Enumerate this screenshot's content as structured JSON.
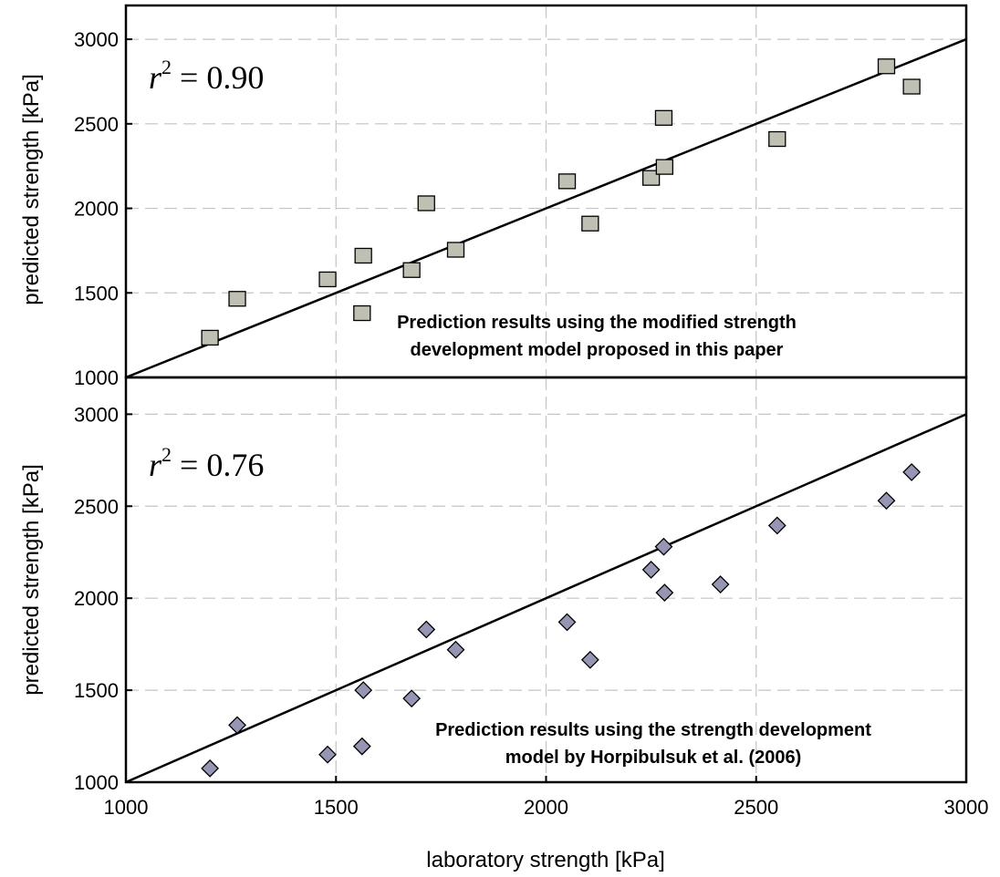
{
  "figure": {
    "xlabel": "laboratory strength [kPa]",
    "xticks": [
      "1000",
      "1500",
      "2000",
      "2500",
      "3000"
    ]
  },
  "chart_data": [
    {
      "type": "scatter",
      "ylabel": "predicted strength [kPa]",
      "yticks": [
        "1000",
        "1500",
        "2000",
        "2500",
        "3000"
      ],
      "xlim": [
        1000,
        3000
      ],
      "ylim": [
        1000,
        3200
      ],
      "grid": true,
      "r2_label": "= 0.90",
      "annotation_line1": "Prediction results using the modified strength",
      "annotation_line2": "development model proposed in this paper",
      "fit_line": [
        [
          1000,
          1000
        ],
        [
          3000,
          3000
        ]
      ],
      "marker": "square",
      "marker_color": "#bfbfb4",
      "x": [
        1200,
        1265,
        1480,
        1562,
        1565,
        1680,
        1715,
        1785,
        2050,
        2105,
        2250,
        2280,
        2282,
        2550,
        2810,
        2870
      ],
      "y": [
        1235,
        1465,
        1580,
        1380,
        1720,
        1635,
        2030,
        1755,
        2160,
        1910,
        2180,
        2535,
        2245,
        2410,
        2840,
        2720
      ]
    },
    {
      "type": "scatter",
      "ylabel": "predicted strength [kPa]",
      "yticks": [
        "1000",
        "1500",
        "2000",
        "2500",
        "3000"
      ],
      "xlim": [
        1000,
        3000
      ],
      "ylim": [
        1000,
        3200
      ],
      "grid": true,
      "r2_label": "= 0.76",
      "annotation_line1": "Prediction results using the strength development",
      "annotation_line2": "model by Horpibulsuk et al. (2006)",
      "fit_line": [
        [
          1000,
          1000
        ],
        [
          3000,
          3000
        ]
      ],
      "marker": "diamond",
      "marker_color": "#9696b4",
      "x": [
        1200,
        1265,
        1480,
        1562,
        1565,
        1680,
        1715,
        1785,
        2050,
        2105,
        2250,
        2280,
        2282,
        2415,
        2550,
        2810,
        2870
      ],
      "y": [
        1075,
        1310,
        1150,
        1195,
        1500,
        1455,
        1830,
        1720,
        1870,
        1665,
        2155,
        2280,
        2030,
        2075,
        2395,
        2530,
        2685
      ]
    }
  ]
}
